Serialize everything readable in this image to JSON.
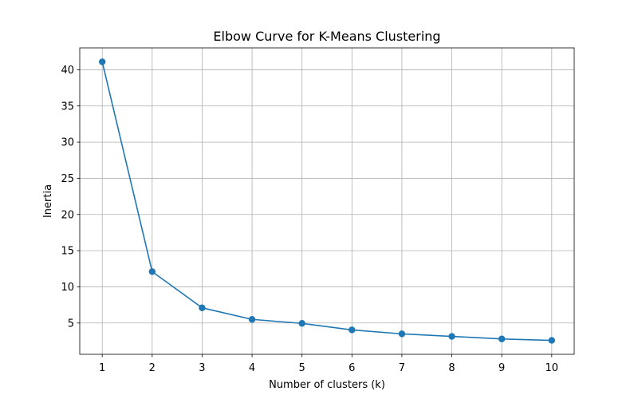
{
  "chart_data": {
    "type": "line",
    "title": "Elbow Curve for K-Means Clustering",
    "xlabel": "Number of clusters (k)",
    "ylabel": "Inertia",
    "x": [
      1,
      2,
      3,
      4,
      5,
      6,
      7,
      8,
      9,
      10
    ],
    "series": [
      {
        "values": [
          41.1,
          12.1,
          7.1,
          5.5,
          4.95,
          4.05,
          3.5,
          3.15,
          2.8,
          2.6
        ],
        "color": "#1f77b4",
        "marker": "circle"
      }
    ],
    "xticks": [
      1,
      2,
      3,
      4,
      5,
      6,
      7,
      8,
      9,
      10
    ],
    "xtick_labels": [
      "1",
      "2",
      "3",
      "4",
      "5",
      "6",
      "7",
      "8",
      "9",
      "10"
    ],
    "yticks": [
      5,
      10,
      15,
      20,
      25,
      30,
      35,
      40
    ],
    "ytick_labels": [
      "5",
      "10",
      "15",
      "20",
      "25",
      "30",
      "35",
      "40"
    ],
    "xlim": [
      0.55,
      10.45
    ],
    "ylim": [
      0.675,
      43.025
    ],
    "grid": true,
    "grid_color": "#b0b0b0"
  }
}
